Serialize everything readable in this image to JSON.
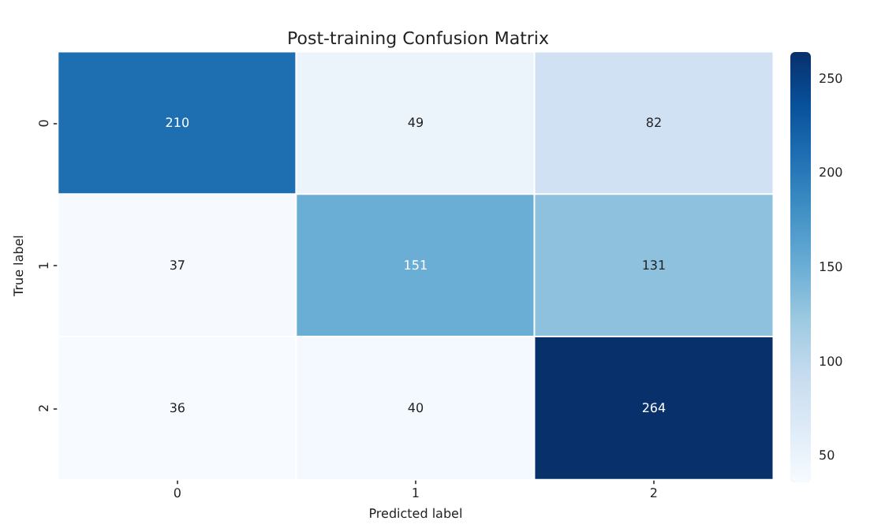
{
  "chart_data": {
    "type": "heatmap",
    "title": "Post-training Confusion Matrix",
    "xlabel": "Predicted label",
    "ylabel": "True label",
    "categories": [
      "0",
      "1",
      "2"
    ],
    "y_categories": [
      "0",
      "1",
      "2"
    ],
    "cells": [
      [
        210,
        49,
        82
      ],
      [
        37,
        151,
        131
      ],
      [
        36,
        40,
        264
      ]
    ],
    "data_labels": true,
    "clim": [
      36,
      264
    ],
    "cticks": [
      50,
      100,
      150,
      200,
      250
    ]
  }
}
